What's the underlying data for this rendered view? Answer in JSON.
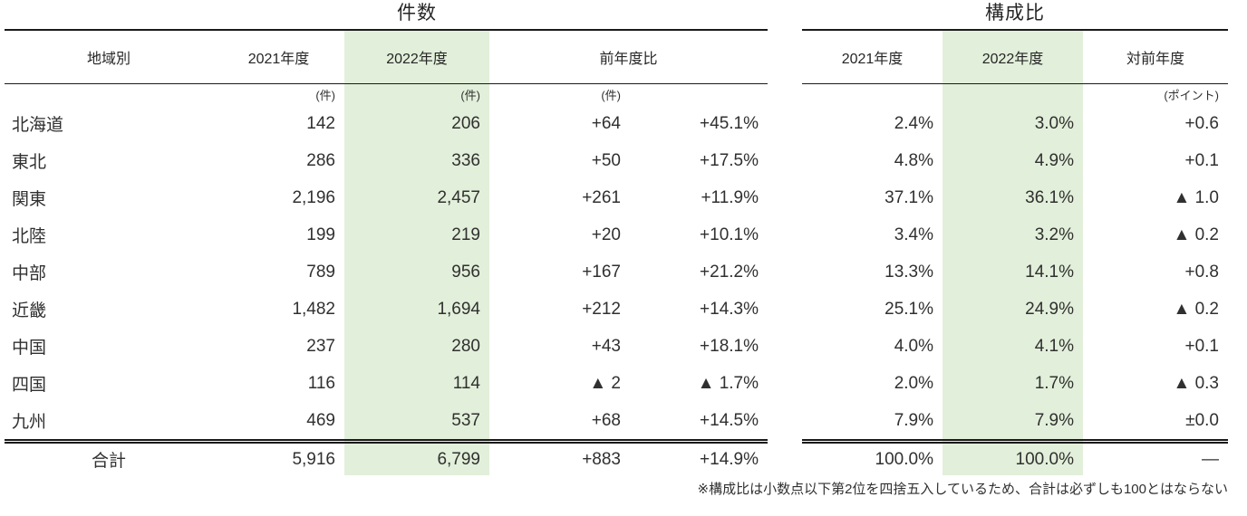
{
  "count_table": {
    "title": "件数",
    "header": {
      "region": "地域別",
      "fy2021": "2021年度",
      "fy2022": "2022年度",
      "yoy": "前年度比"
    },
    "units": {
      "fy2021": "(件)",
      "fy2022": "(件)",
      "yoy_diff": "(件)"
    }
  },
  "share_table": {
    "title": "構成比",
    "header": {
      "fy2021": "2021年度",
      "fy2022": "2022年度",
      "vs_prev_year": "対前年度"
    },
    "units": {
      "vs_prev_year": "(ポイント)"
    }
  },
  "rows": [
    {
      "region": "北海道",
      "count_2021": "142",
      "count_2022": "206",
      "yoy_diff": "+64",
      "yoy_pct": "+45.1%",
      "share_2021": "2.4%",
      "share_2022": "3.0%",
      "share_change": "+0.6"
    },
    {
      "region": "東北",
      "count_2021": "286",
      "count_2022": "336",
      "yoy_diff": "+50",
      "yoy_pct": "+17.5%",
      "share_2021": "4.8%",
      "share_2022": "4.9%",
      "share_change": "+0.1"
    },
    {
      "region": "関東",
      "count_2021": "2,196",
      "count_2022": "2,457",
      "yoy_diff": "+261",
      "yoy_pct": "+11.9%",
      "share_2021": "37.1%",
      "share_2022": "36.1%",
      "share_change": "▲ 1.0"
    },
    {
      "region": "北陸",
      "count_2021": "199",
      "count_2022": "219",
      "yoy_diff": "+20",
      "yoy_pct": "+10.1%",
      "share_2021": "3.4%",
      "share_2022": "3.2%",
      "share_change": "▲ 0.2"
    },
    {
      "region": "中部",
      "count_2021": "789",
      "count_2022": "956",
      "yoy_diff": "+167",
      "yoy_pct": "+21.2%",
      "share_2021": "13.3%",
      "share_2022": "14.1%",
      "share_change": "+0.8"
    },
    {
      "region": "近畿",
      "count_2021": "1,482",
      "count_2022": "1,694",
      "yoy_diff": "+212",
      "yoy_pct": "+14.3%",
      "share_2021": "25.1%",
      "share_2022": "24.9%",
      "share_change": "▲ 0.2"
    },
    {
      "region": "中国",
      "count_2021": "237",
      "count_2022": "280",
      "yoy_diff": "+43",
      "yoy_pct": "+18.1%",
      "share_2021": "4.0%",
      "share_2022": "4.1%",
      "share_change": "+0.1"
    },
    {
      "region": "四国",
      "count_2021": "116",
      "count_2022": "114",
      "yoy_diff": "▲ 2",
      "yoy_pct": "▲ 1.7%",
      "share_2021": "2.0%",
      "share_2022": "1.7%",
      "share_change": "▲ 0.3"
    },
    {
      "region": "九州",
      "count_2021": "469",
      "count_2022": "537",
      "yoy_diff": "+68",
      "yoy_pct": "+14.5%",
      "share_2021": "7.9%",
      "share_2022": "7.9%",
      "share_change": "±0.0"
    }
  ],
  "total_row": {
    "region": "合計",
    "count_2021": "5,916",
    "count_2022": "6,799",
    "yoy_diff": "+883",
    "yoy_pct": "+14.9%",
    "share_2021": "100.0%",
    "share_2022": "100.0%",
    "share_change": "—"
  },
  "footnote": "※構成比は小数点以下第2位を四捨五入しているため、合計は必ずしも100とはならない",
  "colors": {
    "highlight": "#e2efda",
    "text": "#303030",
    "line": "#1a1a1a"
  }
}
